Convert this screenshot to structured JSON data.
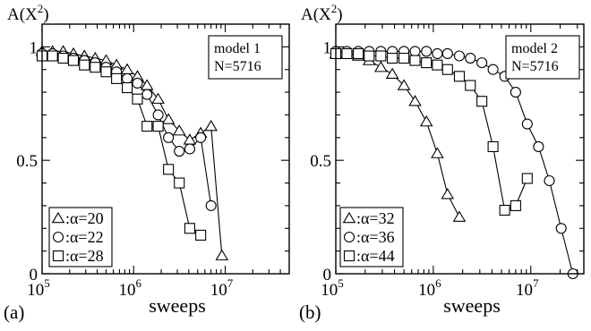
{
  "chart_data": [
    {
      "type": "line",
      "panel_label": "(a)",
      "title": "",
      "ylabel": "A(X2)",
      "xlabel": "sweeps",
      "x_scale": "log",
      "xlim": [
        100000,
        50000000
      ],
      "ylim": [
        0,
        1.1
      ],
      "x_ticks": [
        {
          "value": 100000,
          "base": "10",
          "exp": "5"
        },
        {
          "value": 1000000,
          "base": "10",
          "exp": "6"
        },
        {
          "value": 10000000,
          "base": "10",
          "exp": "7"
        }
      ],
      "y_ticks": [
        {
          "value": 0,
          "label": "0"
        },
        {
          "value": 0.5,
          "label": "0.5"
        },
        {
          "value": 1,
          "label": "1"
        }
      ],
      "info_box": [
        "model 1",
        "N=5716"
      ],
      "legend_position": "bottom-left",
      "series": [
        {
          "name": "α=20",
          "marker": "triangle",
          "x": [
            100000,
            130000,
            170000,
            220000,
            290000,
            380000,
            500000,
            650000,
            850000,
            1100000,
            1400000,
            1850000,
            2400000,
            3150000,
            4100000,
            5400000,
            7000000,
            9200000
          ],
          "y": [
            0.98,
            0.98,
            0.98,
            0.97,
            0.96,
            0.95,
            0.94,
            0.92,
            0.9,
            0.87,
            0.83,
            0.77,
            0.68,
            0.63,
            0.59,
            0.62,
            0.65,
            0.08
          ]
        },
        {
          "name": "α=22",
          "marker": "circle",
          "x": [
            100000,
            130000,
            170000,
            220000,
            290000,
            380000,
            500000,
            650000,
            850000,
            1100000,
            1400000,
            1850000,
            2400000,
            3150000,
            4100000,
            5400000,
            7000000
          ],
          "y": [
            0.97,
            0.97,
            0.96,
            0.95,
            0.94,
            0.93,
            0.91,
            0.89,
            0.86,
            0.84,
            0.79,
            0.7,
            0.6,
            0.54,
            0.55,
            0.6,
            0.3
          ]
        },
        {
          "name": "α=28",
          "marker": "square",
          "x": [
            100000,
            130000,
            170000,
            220000,
            290000,
            380000,
            500000,
            650000,
            850000,
            1100000,
            1400000,
            1850000,
            2400000,
            3150000,
            4100000,
            5400000
          ],
          "y": [
            0.96,
            0.96,
            0.95,
            0.94,
            0.92,
            0.91,
            0.89,
            0.86,
            0.82,
            0.77,
            0.65,
            0.65,
            0.46,
            0.4,
            0.2,
            0.17
          ]
        }
      ]
    },
    {
      "type": "line",
      "panel_label": "(b)",
      "title": "",
      "ylabel": "A(X2)",
      "xlabel": "sweeps",
      "x_scale": "log",
      "xlim": [
        100000,
        35000000
      ],
      "ylim": [
        0,
        1.1
      ],
      "x_ticks": [
        {
          "value": 100000,
          "base": "10",
          "exp": "5"
        },
        {
          "value": 1000000,
          "base": "10",
          "exp": "6"
        },
        {
          "value": 10000000,
          "base": "10",
          "exp": "7"
        }
      ],
      "y_ticks": [
        {
          "value": 0,
          "label": "0"
        },
        {
          "value": 0.5,
          "label": "0.5"
        },
        {
          "value": 1,
          "label": "1"
        }
      ],
      "info_box": [
        "model 2",
        "N=5716"
      ],
      "legend_position": "bottom-left",
      "series": [
        {
          "name": "α=32",
          "marker": "triangle",
          "x": [
            100000,
            130000,
            170000,
            220000,
            290000,
            380000,
            500000,
            650000,
            850000,
            1100000,
            1400000,
            1850000
          ],
          "y": [
            0.97,
            0.97,
            0.96,
            0.94,
            0.91,
            0.88,
            0.83,
            0.76,
            0.67,
            0.53,
            0.35,
            0.25
          ]
        },
        {
          "name": "α=36",
          "marker": "circle",
          "x": [
            100000,
            130000,
            170000,
            220000,
            290000,
            380000,
            500000,
            650000,
            850000,
            1100000,
            1400000,
            1850000,
            2400000,
            3150000,
            4100000,
            5400000,
            7000000,
            9200000,
            12000000,
            15500000,
            20500000,
            27000000
          ],
          "y": [
            0.98,
            0.98,
            0.98,
            0.98,
            0.98,
            0.98,
            0.98,
            0.98,
            0.98,
            0.97,
            0.97,
            0.96,
            0.95,
            0.93,
            0.9,
            0.87,
            0.8,
            0.66,
            0.56,
            0.41,
            0.2,
            0.0
          ]
        },
        {
          "name": "α=44",
          "marker": "square",
          "x": [
            100000,
            130000,
            170000,
            220000,
            290000,
            380000,
            500000,
            650000,
            850000,
            1100000,
            1400000,
            1850000,
            2400000,
            3150000,
            4100000,
            5400000,
            7000000,
            9200000
          ],
          "y": [
            0.97,
            0.97,
            0.97,
            0.96,
            0.96,
            0.95,
            0.95,
            0.94,
            0.93,
            0.92,
            0.9,
            0.87,
            0.83,
            0.76,
            0.56,
            0.28,
            0.3,
            0.42
          ]
        }
      ]
    }
  ]
}
